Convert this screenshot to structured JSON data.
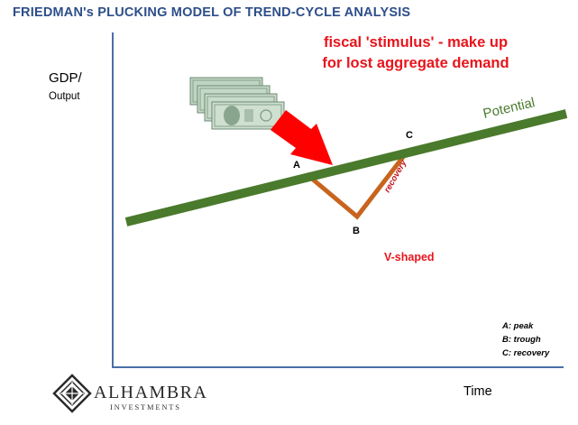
{
  "title": "FRIEDMAN's PLUCKING MODEL OF TREND-CYCLE ANALYSIS",
  "annotation": {
    "line1": "fiscal 'stimulus' - make up",
    "line2": "for lost aggregate demand"
  },
  "axes": {
    "y_label_main": "GDP/",
    "y_label_sub": "Output",
    "x_label": "Time"
  },
  "trend_label": "Potential",
  "points": {
    "a": "A",
    "b": "B",
    "c": "C"
  },
  "recovery_label": "recovery",
  "shape_label": "V-shaped",
  "legend": {
    "a": "A: peak",
    "b": "B: trough",
    "c": "C: recovery"
  },
  "logo": {
    "name": "ALHAMBRA",
    "sub": "INVESTMENTS"
  },
  "colors": {
    "title": "#2e4e8a",
    "annotation": "#e8141c",
    "trend_line": "#4a7a2c",
    "cycle_line": "#c8641e",
    "axes": "#4a6fa5",
    "arrow": "#ff0000"
  },
  "icons": {
    "money": "dollar-bills-icon",
    "arrow": "red-arrow-icon",
    "logo": "diamond-logo-icon"
  }
}
